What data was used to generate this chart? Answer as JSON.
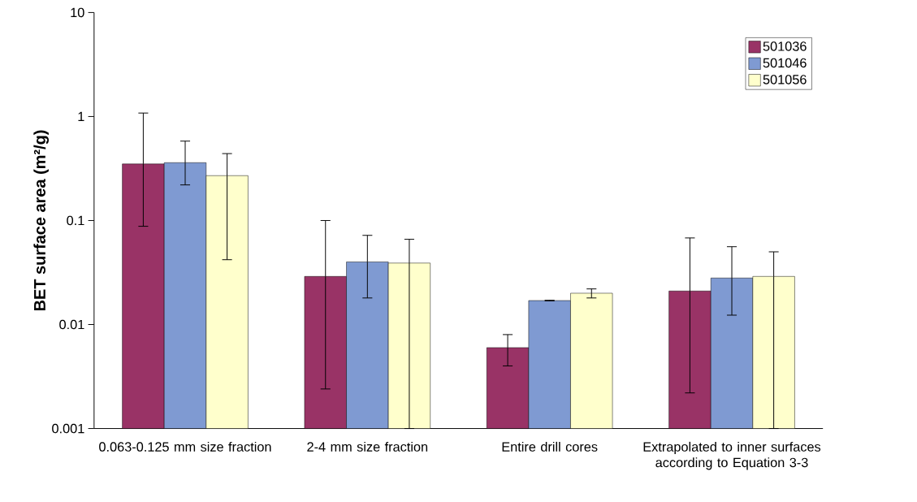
{
  "chart_data": {
    "type": "bar",
    "ylabel": "BET surface area (m²/g)",
    "log": "y",
    "legend": "top right",
    "grid": false,
    "categories": [
      "0.063-0.125 mm size fraction",
      "2-4 mm size fraction",
      "Entire drill cores",
      "Extrapolated to inner surfaces according to Equation 3-3"
    ],
    "ylim": [
      0.001,
      10
    ],
    "yticks": [
      0.001,
      0.01,
      0.1,
      1,
      10
    ],
    "series": [
      {
        "name": "501036",
        "color": "#993366",
        "values": [
          0.35,
          0.029,
          0.006,
          0.021
        ],
        "errors": [
          [
            0.088,
            1.08
          ],
          [
            0.0024,
            0.1
          ],
          [
            0.004,
            0.008
          ],
          [
            0.0022,
            0.068
          ]
        ]
      },
      {
        "name": "501046",
        "color": "#7f9ad2",
        "values": [
          0.36,
          0.04,
          0.017,
          0.028
        ],
        "errors": [
          [
            0.22,
            0.58
          ],
          [
            0.018,
            0.072
          ],
          [
            0.0169,
            0.0171
          ],
          [
            0.0123,
            0.056
          ]
        ]
      },
      {
        "name": "501056",
        "color": "#ffffcc",
        "values": [
          0.27,
          0.039,
          0.02,
          0.029
        ],
        "errors": [
          [
            0.042,
            0.44
          ],
          [
            0.001,
            0.066
          ],
          [
            0.018,
            0.022
          ],
          [
            0.001,
            0.05
          ]
        ]
      }
    ]
  }
}
